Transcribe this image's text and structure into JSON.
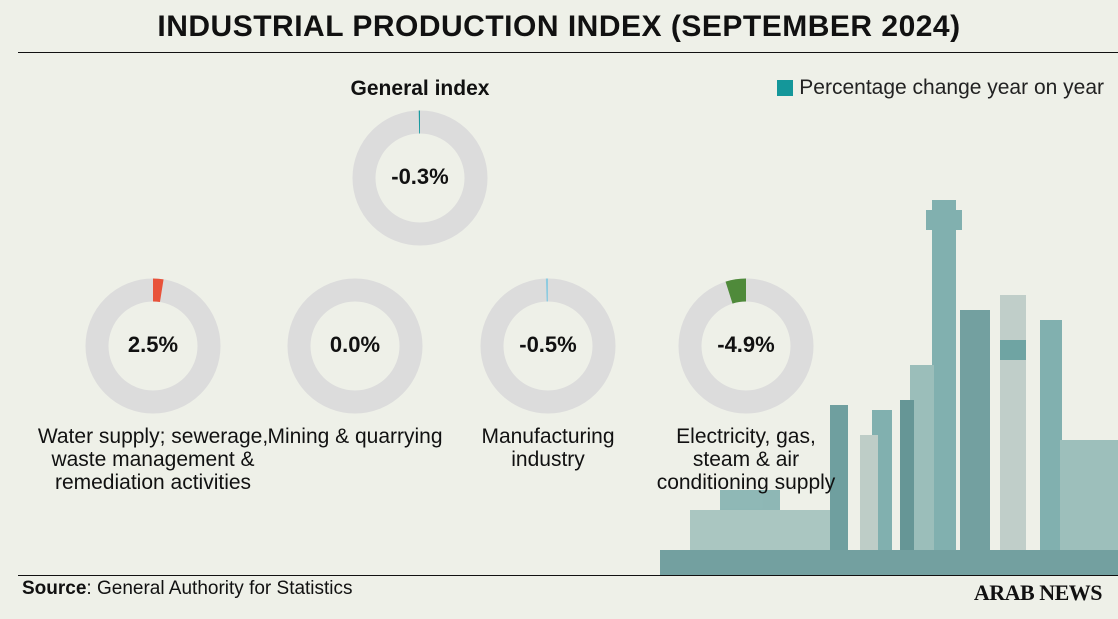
{
  "chart_data": {
    "type": "donut",
    "title": "INDUSTRIAL PRODUCTION INDEX (SEPTEMBER 2024)",
    "legend_label": "Percentage change year on year",
    "legend_color": "#14979a",
    "categories": [
      "General index",
      "Water supply; sewerage, waste management & remediation activities",
      "Mining & quarrying",
      "Manufacturing industry",
      "Electricity, gas, steam & air conditioning supply"
    ],
    "values": [
      -0.3,
      2.5,
      0.0,
      -0.5,
      -4.9
    ],
    "value_labels": [
      "-0.3%",
      "2.5%",
      "0.0%",
      "-0.5%",
      "-4.9%"
    ],
    "colors": [
      "#1a9aa0",
      "#e8523a",
      "#999999",
      "#8ecbe0",
      "#4f8a3a"
    ],
    "source_label": "Source",
    "source": ": General Authority for Statistics",
    "logo": "ARAB NEWS"
  }
}
